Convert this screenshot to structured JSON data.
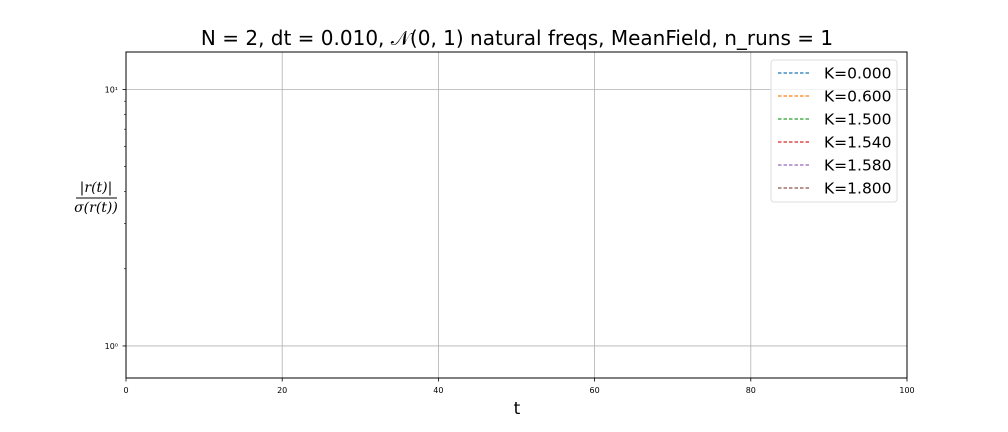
{
  "chart_data": {
    "type": "line",
    "title": "N = 2, dt = 0.010, 𝒩(0, 1) natural freqs, MeanField, n_runs = 1",
    "xlabel": "t",
    "ylabel_num": "|r(t)|",
    "ylabel_den": "σ(r(t))",
    "xlim": [
      0,
      100
    ],
    "ylim": [
      0.75,
      14
    ],
    "yscale": "log",
    "grid": true,
    "legend_position": "top-right",
    "x_ticks": [
      0,
      20,
      40,
      60,
      80,
      100
    ],
    "x_tick_labels": [
      "0",
      "20",
      "40",
      "60",
      "80",
      "100"
    ],
    "y_ticks": [
      1,
      10
    ],
    "y_tick_labels": [
      "10⁰",
      "10¹"
    ],
    "series": [
      {
        "name": "K=0.000",
        "color": "#1f77b4",
        "style": "dashed",
        "x": [],
        "y": []
      },
      {
        "name": "K=0.600",
        "color": "#ff7f0e",
        "style": "dashed",
        "x": [],
        "y": []
      },
      {
        "name": "K=1.500",
        "color": "#2ca02c",
        "style": "dashed",
        "x": [],
        "y": []
      },
      {
        "name": "K=1.540",
        "color": "#d62728",
        "style": "dashed",
        "x": [],
        "y": []
      },
      {
        "name": "K=1.580",
        "color": "#9467bd",
        "style": "dashed",
        "x": [],
        "y": []
      },
      {
        "name": "K=1.800",
        "color": "#8c564b",
        "style": "dashed",
        "x": [],
        "y": []
      }
    ]
  }
}
